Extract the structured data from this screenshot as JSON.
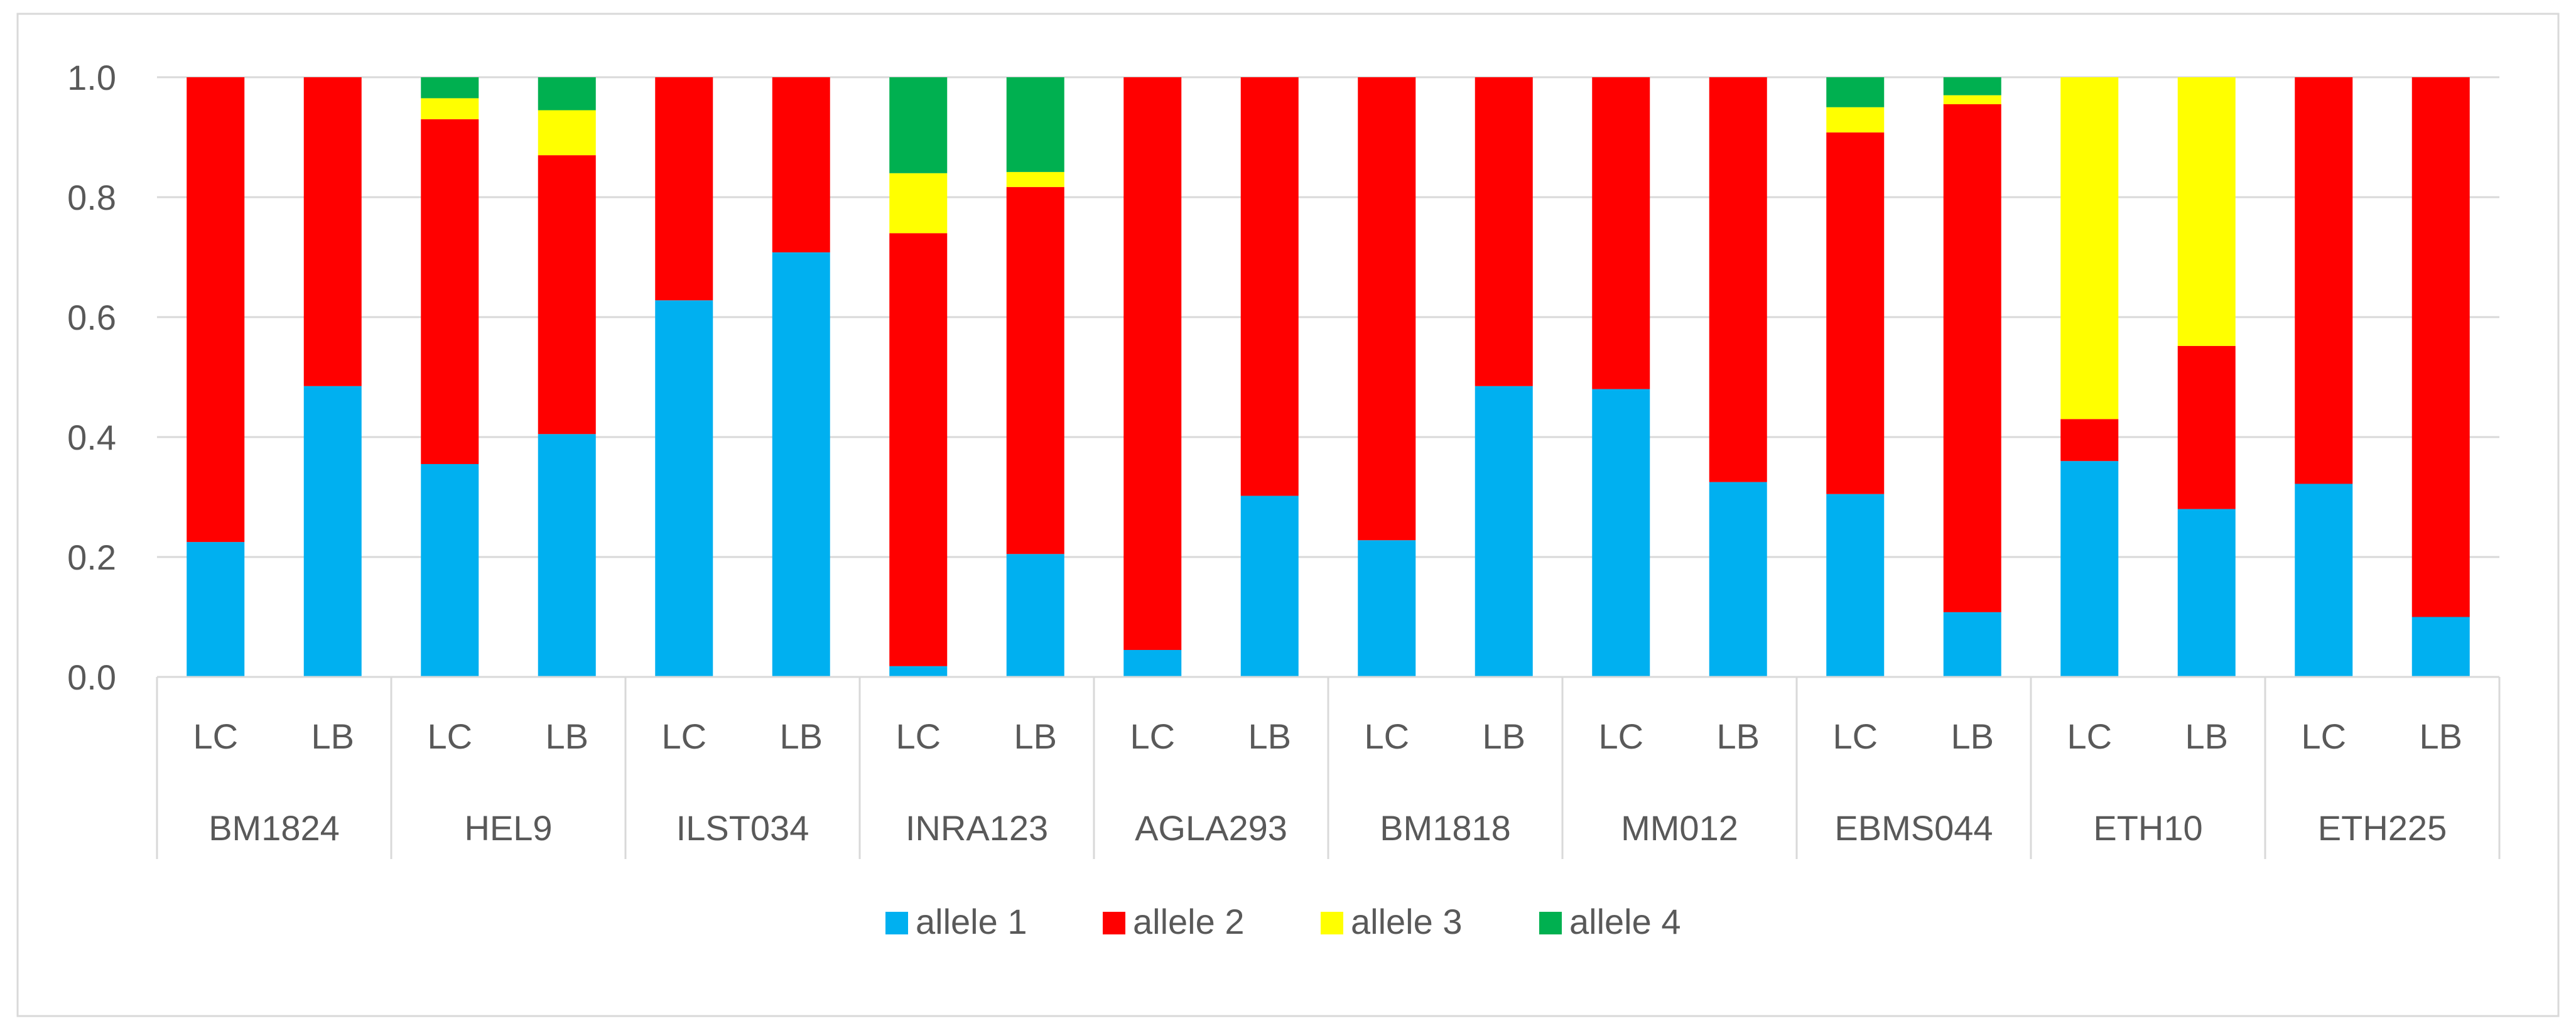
{
  "chart_data": {
    "type": "bar",
    "stacked": true,
    "title": "",
    "xlabel": "",
    "ylabel": "",
    "ylim": [
      0,
      1.0
    ],
    "yticks": [
      "0.0",
      "0.2",
      "0.4",
      "0.6",
      "0.8",
      "1.0"
    ],
    "grid": true,
    "legend_position": "bottom",
    "groups": [
      "BM1824",
      "HEL9",
      "ILST034",
      "INRA123",
      "AGLA293",
      "BM1818",
      "MM012",
      "EBMS044",
      "ETH10",
      "ETH225"
    ],
    "subcategories": [
      "LC",
      "LB"
    ],
    "series": [
      {
        "name": "allele 1",
        "color": "#00B0F0",
        "values": [
          0.225,
          0.485,
          0.355,
          0.405,
          0.628,
          0.708,
          0.018,
          0.205,
          0.045,
          0.302,
          0.228,
          0.485,
          0.48,
          0.325,
          0.305,
          0.108,
          0.36,
          0.28,
          0.322,
          0.1
        ]
      },
      {
        "name": "allele 2",
        "color": "#FF0000",
        "values": [
          0.775,
          0.515,
          0.575,
          0.465,
          0.372,
          0.292,
          0.722,
          0.612,
          0.955,
          0.698,
          0.772,
          0.515,
          0.52,
          0.675,
          0.603,
          0.847,
          0.07,
          0.272,
          0.678,
          0.9
        ]
      },
      {
        "name": "allele 3",
        "color": "#FFFF00",
        "values": [
          0,
          0,
          0.035,
          0.075,
          0,
          0,
          0.1,
          0.025,
          0,
          0,
          0,
          0,
          0,
          0,
          0.042,
          0.015,
          0.57,
          0.448,
          0,
          0
        ]
      },
      {
        "name": "allele 4",
        "color": "#00B050",
        "values": [
          0,
          0,
          0.035,
          0.055,
          0,
          0,
          0.16,
          0.158,
          0,
          0,
          0,
          0,
          0,
          0,
          0.05,
          0.03,
          0,
          0,
          0,
          0
        ]
      }
    ]
  }
}
